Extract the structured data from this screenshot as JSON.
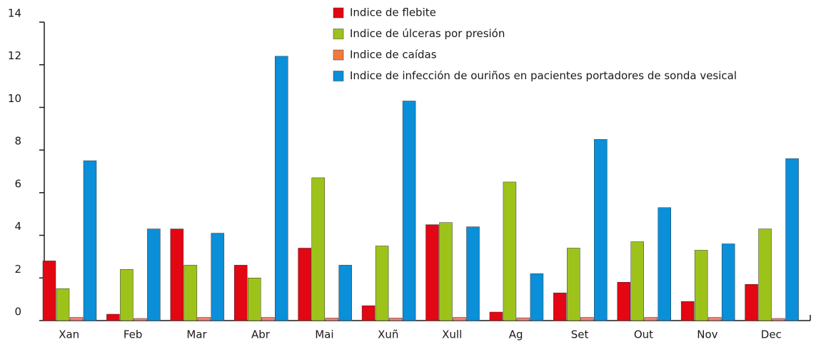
{
  "chart_data": {
    "type": "bar",
    "categories": [
      "Xan",
      "Feb",
      "Mar",
      "Abr",
      "Mai",
      "Xuñ",
      "Xull",
      "Ag",
      "Set",
      "Out",
      "Nov",
      "Dec"
    ],
    "series": [
      {
        "name": "Indice de flebite",
        "color": "#e30613",
        "values": [
          2.8,
          0.3,
          4.3,
          2.6,
          3.4,
          0.7,
          4.5,
          0.4,
          1.3,
          1.8,
          0.9,
          1.7
        ]
      },
      {
        "name": "Indice de úlceras por presión",
        "color": "#9dc31b",
        "values": [
          1.5,
          2.4,
          2.6,
          2.0,
          6.7,
          3.5,
          4.6,
          6.5,
          3.4,
          3.7,
          3.3,
          4.3
        ]
      },
      {
        "name": "Indice de caídas",
        "color": "#f08070",
        "values": [
          0.15,
          0.1,
          0.15,
          0.15,
          0.12,
          0.12,
          0.15,
          0.13,
          0.15,
          0.15,
          0.15,
          0.1
        ]
      },
      {
        "name": "Indice de infección de ouriños en pacientes portadores de sonda vesical",
        "color": "#0a8fd8",
        "values": [
          7.5,
          4.3,
          4.1,
          12.4,
          2.6,
          10.3,
          4.4,
          2.2,
          8.5,
          5.3,
          3.6,
          7.6
        ]
      }
    ],
    "ylim": [
      0,
      14
    ],
    "yticks": [
      0,
      2,
      4,
      6,
      8,
      10,
      12,
      14
    ],
    "legend": "top-right"
  }
}
